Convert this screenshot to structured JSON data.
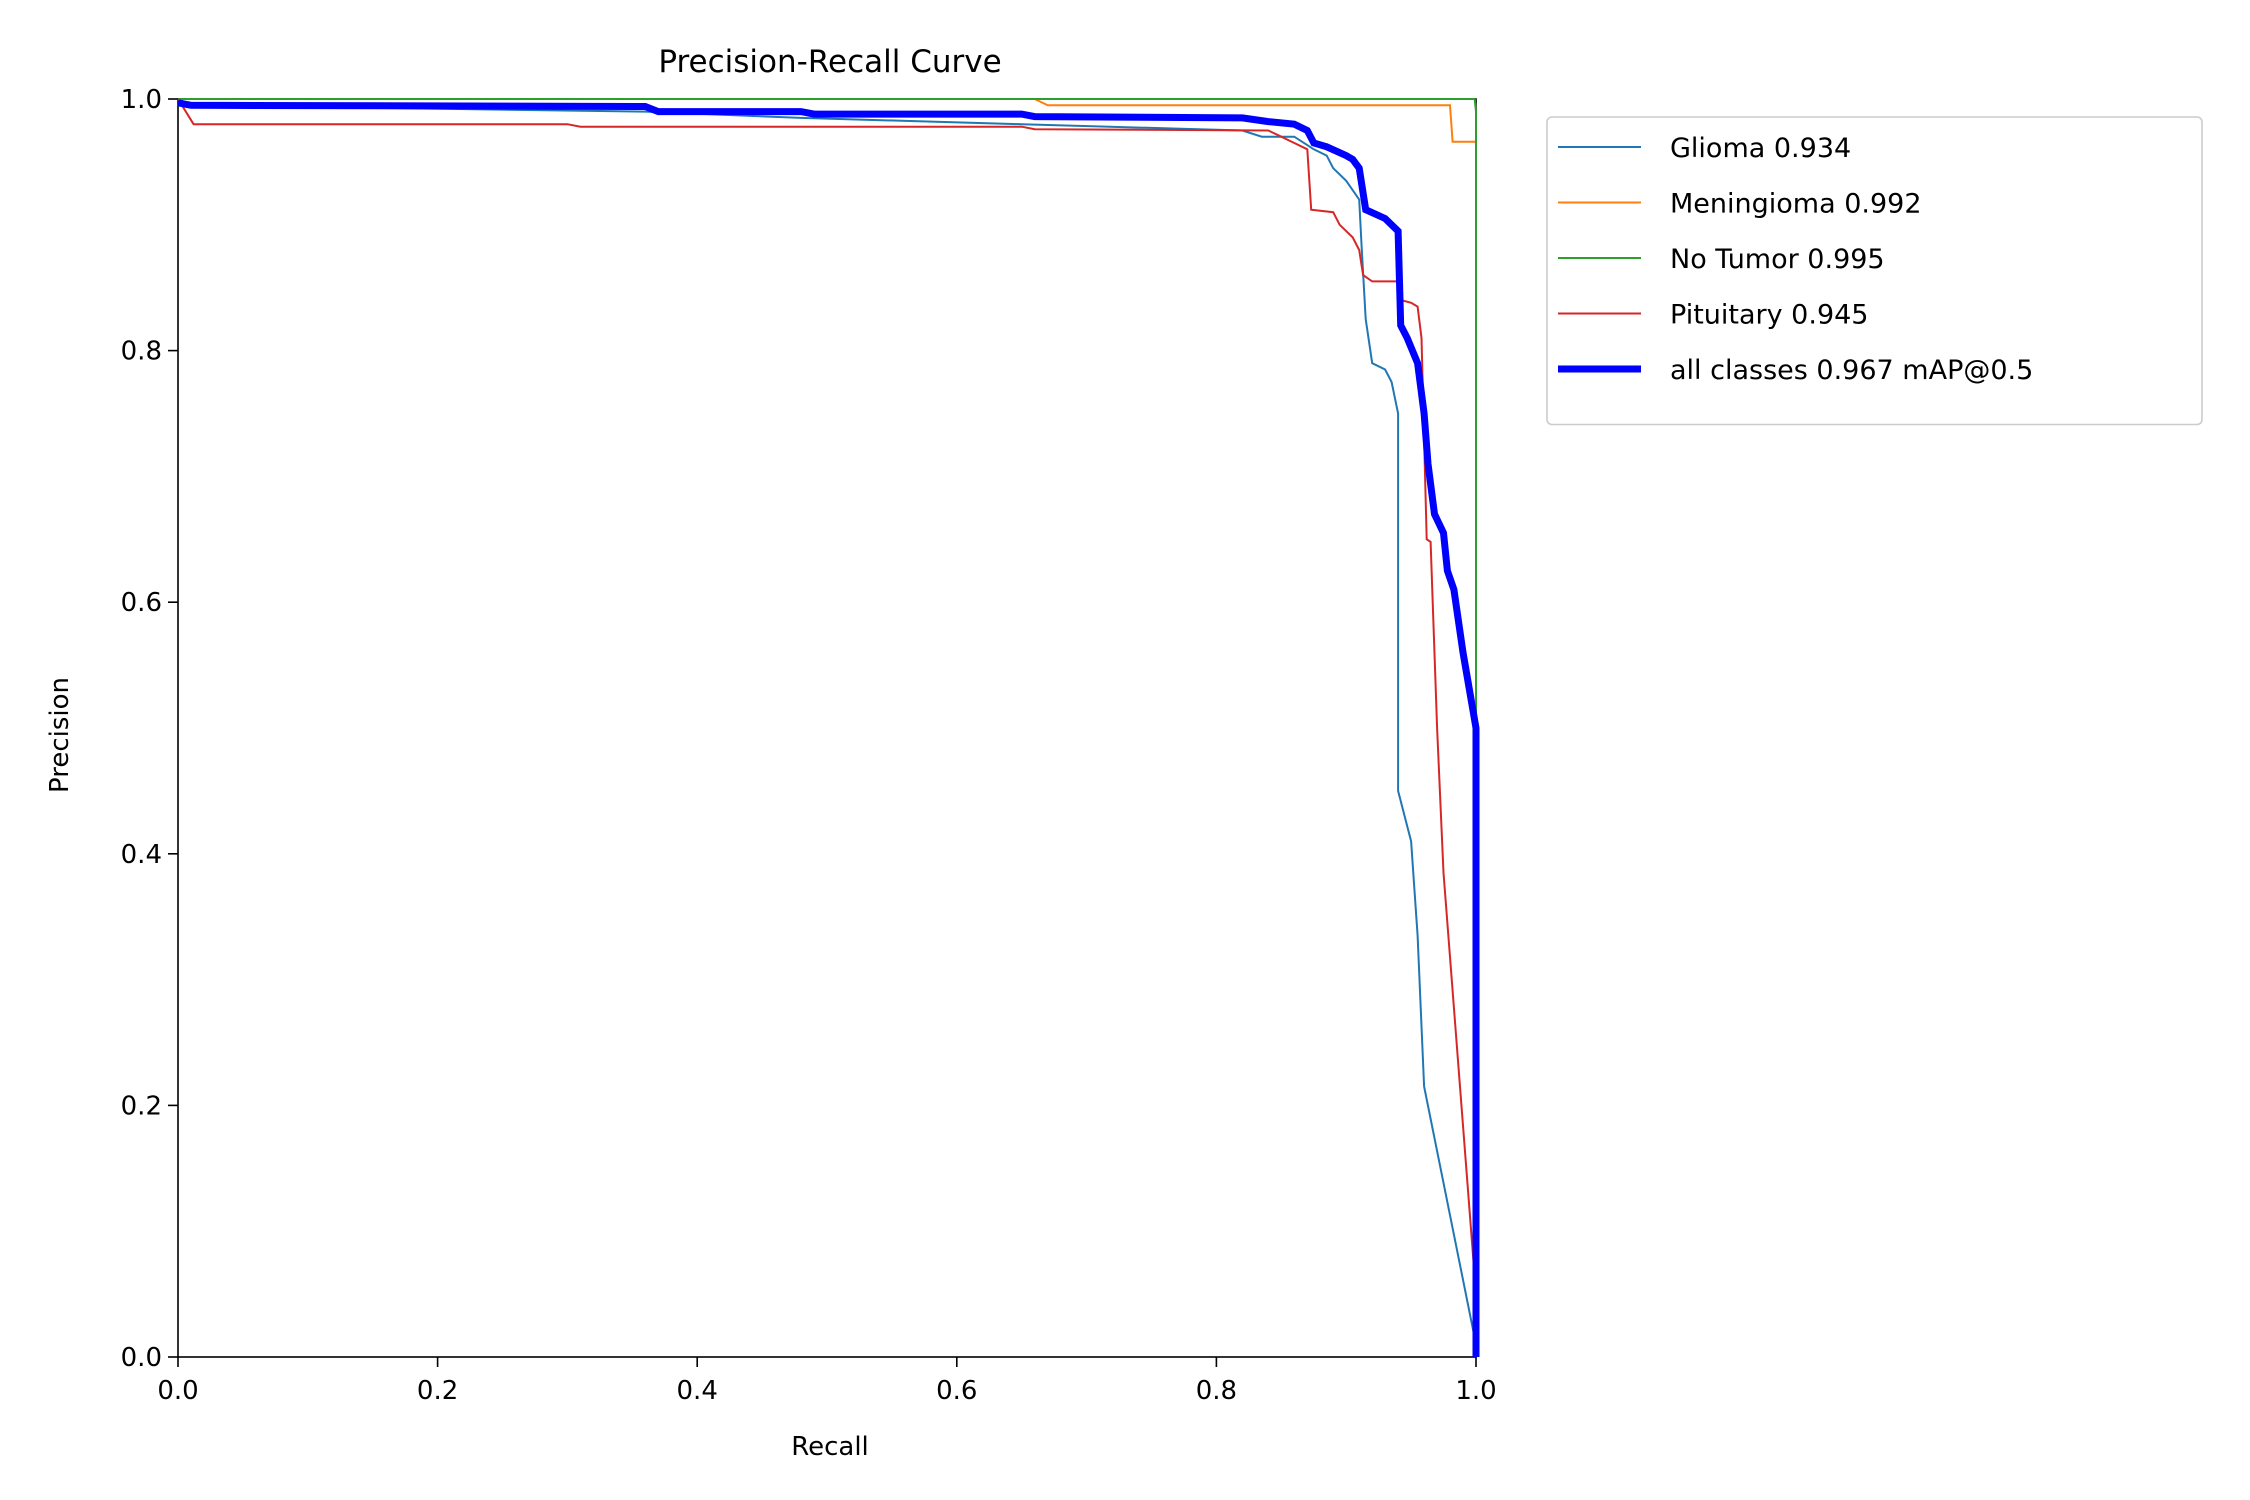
{
  "chart_data": {
    "type": "line",
    "title": "Precision-Recall Curve",
    "xlabel": "Recall",
    "ylabel": "Precision",
    "xlim": [
      0,
      1
    ],
    "ylim": [
      0,
      1
    ],
    "x_ticks": [
      "0.0",
      "0.2",
      "0.4",
      "0.6",
      "0.8",
      "1.0"
    ],
    "y_ticks": [
      "0.0",
      "0.2",
      "0.4",
      "0.6",
      "0.8",
      "1.0"
    ],
    "grid": false,
    "legend_position": "outside-upper-right",
    "series": [
      {
        "name": "Glioma 0.934",
        "color": "#1f77b4",
        "width": "thin",
        "points": [
          [
            0,
            1.0
          ],
          [
            0.01,
            0.995
          ],
          [
            0.36,
            0.99
          ],
          [
            0.48,
            0.985
          ],
          [
            0.65,
            0.98
          ],
          [
            0.82,
            0.975
          ],
          [
            0.835,
            0.97
          ],
          [
            0.86,
            0.97
          ],
          [
            0.875,
            0.96
          ],
          [
            0.885,
            0.955
          ],
          [
            0.89,
            0.945
          ],
          [
            0.9,
            0.935
          ],
          [
            0.91,
            0.92
          ],
          [
            0.912,
            0.88
          ],
          [
            0.915,
            0.825
          ],
          [
            0.92,
            0.79
          ],
          [
            0.93,
            0.785
          ],
          [
            0.935,
            0.775
          ],
          [
            0.94,
            0.75
          ],
          [
            0.94,
            0.45
          ],
          [
            0.95,
            0.41
          ],
          [
            0.955,
            0.335
          ],
          [
            0.96,
            0.215
          ],
          [
            1.0,
            0.01
          ]
        ]
      },
      {
        "name": "Meningioma 0.992",
        "color": "#ff7f0e",
        "width": "thin",
        "points": [
          [
            0,
            1.0
          ],
          [
            0.66,
            1.0
          ],
          [
            0.67,
            0.995
          ],
          [
            0.98,
            0.995
          ],
          [
            0.982,
            0.966
          ],
          [
            1.0,
            0.966
          ],
          [
            1.0,
            0.5
          ]
        ]
      },
      {
        "name": "No Tumor 0.995",
        "color": "#2ca02c",
        "width": "thin",
        "points": [
          [
            0,
            1.0
          ],
          [
            0.999,
            1.0
          ],
          [
            1.0,
            0.99
          ],
          [
            1.0,
            0.5
          ]
        ]
      },
      {
        "name": "Pituitary 0.945",
        "color": "#d62728",
        "width": "thin",
        "points": [
          [
            0,
            1.0
          ],
          [
            0.012,
            0.98
          ],
          [
            0.3,
            0.98
          ],
          [
            0.31,
            0.978
          ],
          [
            0.65,
            0.978
          ],
          [
            0.66,
            0.976
          ],
          [
            0.84,
            0.975
          ],
          [
            0.85,
            0.97
          ],
          [
            0.86,
            0.965
          ],
          [
            0.87,
            0.96
          ],
          [
            0.873,
            0.912
          ],
          [
            0.89,
            0.91
          ],
          [
            0.895,
            0.9
          ],
          [
            0.905,
            0.89
          ],
          [
            0.91,
            0.88
          ],
          [
            0.913,
            0.86
          ],
          [
            0.92,
            0.855
          ],
          [
            0.94,
            0.855
          ],
          [
            0.943,
            0.84
          ],
          [
            0.95,
            0.838
          ],
          [
            0.955,
            0.835
          ],
          [
            0.958,
            0.81
          ],
          [
            0.962,
            0.65
          ],
          [
            0.965,
            0.648
          ],
          [
            0.97,
            0.5
          ],
          [
            0.975,
            0.385
          ],
          [
            1.0,
            0.05
          ]
        ]
      },
      {
        "name": "all classes 0.967 mAP@0.5",
        "color": "#0000ff",
        "width": "thick",
        "points": [
          [
            0,
            0.997
          ],
          [
            0.01,
            0.995
          ],
          [
            0.36,
            0.994
          ],
          [
            0.37,
            0.99
          ],
          [
            0.48,
            0.99
          ],
          [
            0.49,
            0.988
          ],
          [
            0.65,
            0.988
          ],
          [
            0.66,
            0.986
          ],
          [
            0.82,
            0.985
          ],
          [
            0.84,
            0.982
          ],
          [
            0.86,
            0.98
          ],
          [
            0.87,
            0.975
          ],
          [
            0.875,
            0.965
          ],
          [
            0.885,
            0.962
          ],
          [
            0.9,
            0.955
          ],
          [
            0.905,
            0.952
          ],
          [
            0.91,
            0.945
          ],
          [
            0.915,
            0.912
          ],
          [
            0.93,
            0.905
          ],
          [
            0.94,
            0.895
          ],
          [
            0.942,
            0.82
          ],
          [
            0.947,
            0.81
          ],
          [
            0.955,
            0.79
          ],
          [
            0.96,
            0.75
          ],
          [
            0.963,
            0.71
          ],
          [
            0.968,
            0.67
          ],
          [
            0.975,
            0.655
          ],
          [
            0.978,
            0.625
          ],
          [
            0.983,
            0.61
          ],
          [
            0.99,
            0.56
          ],
          [
            1.0,
            0.5
          ],
          [
            1.0,
            0.0
          ]
        ]
      }
    ]
  }
}
